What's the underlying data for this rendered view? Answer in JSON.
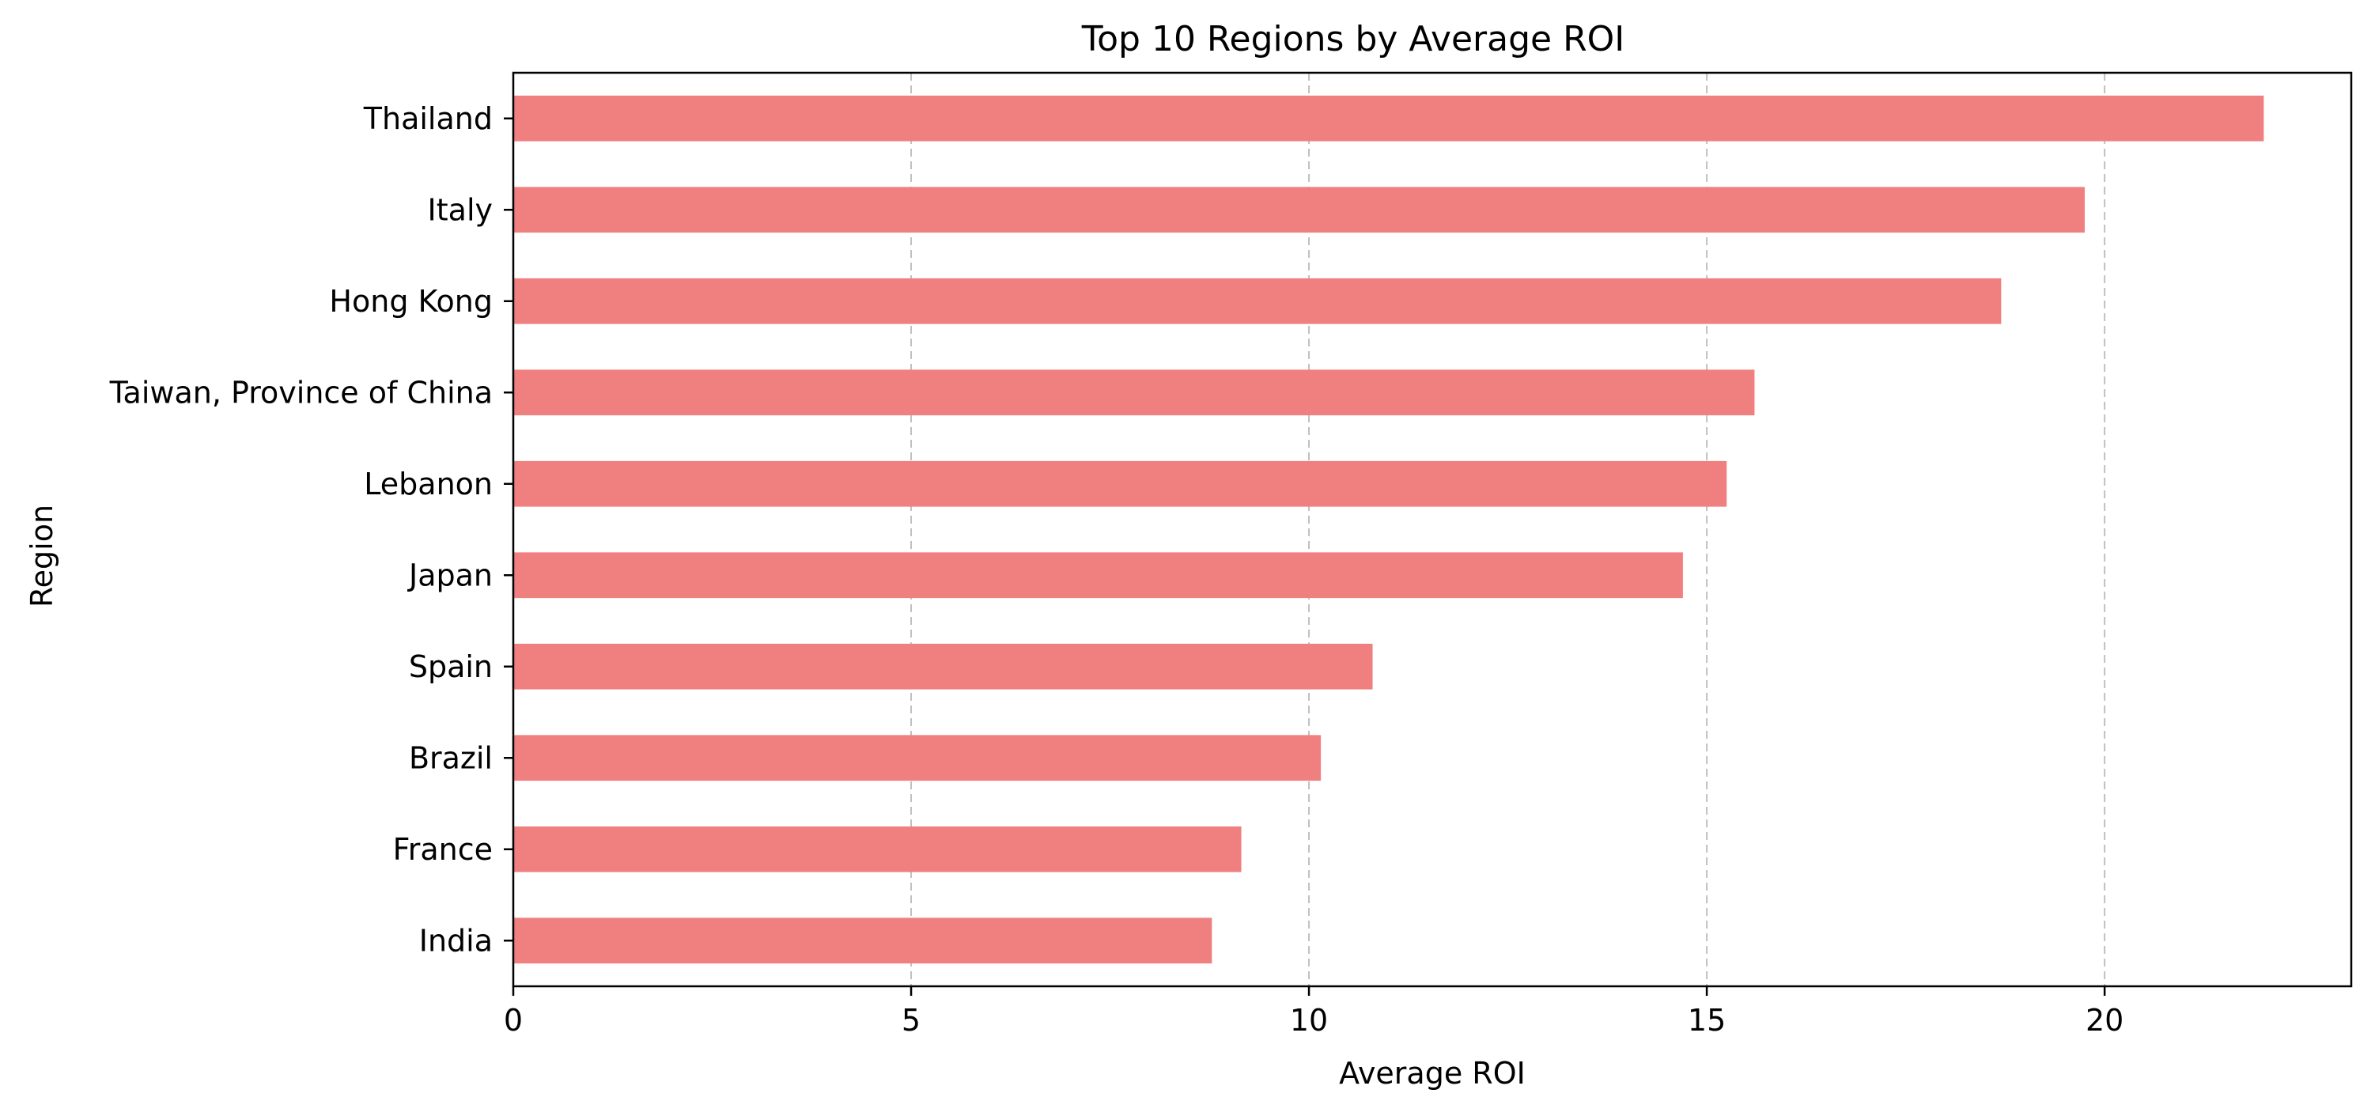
{
  "chart_data": {
    "type": "bar",
    "orientation": "horizontal",
    "title": "Top 10 Regions by Average ROI",
    "xlabel": "Average ROI",
    "ylabel": "Region",
    "categories": [
      "Thailand",
      "Italy",
      "Hong Kong",
      "Taiwan, Province of China",
      "Lebanon",
      "Japan",
      "Spain",
      "Brazil",
      "France",
      "India"
    ],
    "values": [
      22.0,
      19.75,
      18.7,
      15.6,
      15.25,
      14.7,
      10.8,
      10.15,
      9.15,
      8.78
    ],
    "xlim": [
      0,
      23.1
    ],
    "xticks": [
      0,
      5,
      10,
      15,
      20
    ],
    "grid": {
      "x": true,
      "y": false,
      "style": "dashed"
    },
    "bar_color": "#f08080"
  }
}
